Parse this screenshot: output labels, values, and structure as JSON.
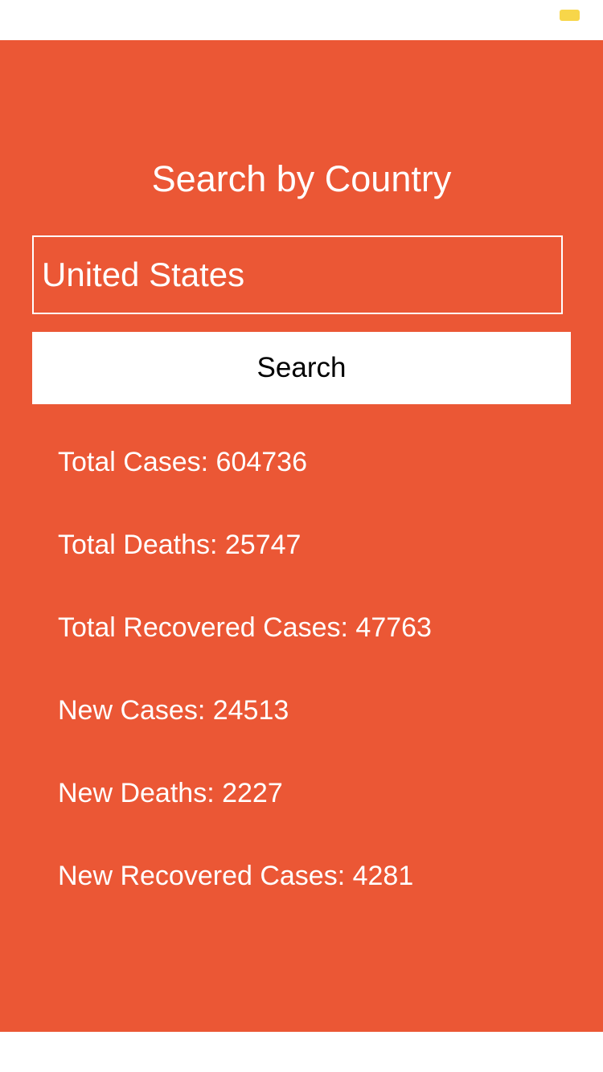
{
  "status_bar": {
    "battery_icon": "battery-icon",
    "battery_color": "#f7d64a"
  },
  "theme": {
    "panel_color": "#eb5735",
    "text_color": "#ffffff"
  },
  "page": {
    "title": "Search by Country"
  },
  "search": {
    "value": "United States",
    "button_label": "Search"
  },
  "stats": [
    {
      "label": "Total Cases: ",
      "value": "604736"
    },
    {
      "label": "Total Deaths: ",
      "value": "25747"
    },
    {
      "label": "Total Recovered Cases: ",
      "value": "47763"
    },
    {
      "label": "New Cases: ",
      "value": "24513"
    },
    {
      "label": "New Deaths: ",
      "value": "2227"
    },
    {
      "label": "New Recovered Cases: ",
      "value": "4281"
    }
  ]
}
